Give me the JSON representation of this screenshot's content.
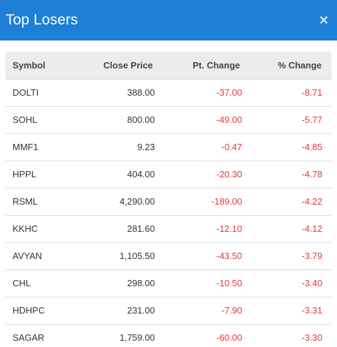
{
  "header": {
    "title": "Top Losers",
    "close_glyph": "×"
  },
  "table": {
    "columns": [
      "Symbol",
      "Close Price",
      "Pt. Change",
      "% Change"
    ],
    "rows": [
      {
        "symbol": "DOLTI",
        "close": "388.00",
        "pt": "-37.00",
        "pct": "-8.71"
      },
      {
        "symbol": "SOHL",
        "close": "800.00",
        "pt": "-49.00",
        "pct": "-5.77"
      },
      {
        "symbol": "MMF1",
        "close": "9.23",
        "pt": "-0.47",
        "pct": "-4.85"
      },
      {
        "symbol": "HPPL",
        "close": "404.00",
        "pt": "-20.30",
        "pct": "-4.78"
      },
      {
        "symbol": "RSML",
        "close": "4,290.00",
        "pt": "-189.00",
        "pct": "-4.22"
      },
      {
        "symbol": "KKHC",
        "close": "281.60",
        "pt": "-12.10",
        "pct": "-4.12"
      },
      {
        "symbol": "AVYAN",
        "close": "1,105.50",
        "pt": "-43.50",
        "pct": "-3.79"
      },
      {
        "symbol": "CHL",
        "close": "298.00",
        "pt": "-10.50",
        "pct": "-3.40"
      },
      {
        "symbol": "HDHPC",
        "close": "231.00",
        "pt": "-7.90",
        "pct": "-3.31"
      },
      {
        "symbol": "SAGAR",
        "close": "1,759.00",
        "pt": "-60.00",
        "pct": "-3.30"
      }
    ]
  },
  "colors": {
    "header_bg": "#1e7fd6",
    "negative": "#e03a3a",
    "thead_bg": "#ececec"
  }
}
